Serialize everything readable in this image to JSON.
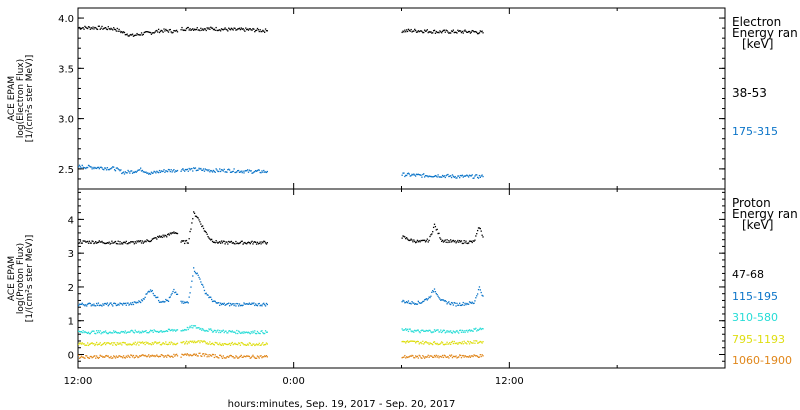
{
  "xlabel": "hours:minutes, Sep. 19, 2017 - Sep. 20, 2017",
  "x_ticks": [
    {
      "hours": 0,
      "label": "12:00"
    },
    {
      "hours": 12,
      "label": "0:00"
    },
    {
      "hours": 24,
      "label": "12:00"
    }
  ],
  "x_range_hours": [
    0,
    36
  ],
  "colors": {
    "black": "#000000",
    "blue": "#0a74c8",
    "cyan": "#26dcd6",
    "yellow": "#dede10",
    "orange": "#e0861a"
  },
  "chart_data": [
    {
      "type": "scatter",
      "ylabel_lines": [
        "ACE EPAM",
        "log(Electron Flux)",
        "[1/(cm²s ster MeV)]"
      ],
      "ylim": [
        2.3,
        4.1
      ],
      "y_ticks": [
        {
          "value": 2.5,
          "label": "2.5"
        },
        {
          "value": 3.0,
          "label": "3.0"
        },
        {
          "value": 3.5,
          "label": "3.5"
        },
        {
          "value": 4.0,
          "label": "4.0"
        }
      ],
      "legend_title": [
        "Electron",
        "Energy ran",
        "[keV]"
      ],
      "series": [
        {
          "name": "38-53",
          "color": "#000000",
          "segments": [
            {
              "x": [
                0,
                1,
                2,
                2.5,
                3,
                3.5,
                4,
                4.5,
                5,
                5.5
              ],
              "y": [
                3.91,
                3.91,
                3.9,
                3.86,
                3.83,
                3.85,
                3.86,
                3.88,
                3.88,
                3.87
              ]
            },
            {
              "x": [
                5.7,
                6.5,
                7.5,
                8.5,
                9.5,
                10.5
              ],
              "y": [
                3.9,
                3.9,
                3.9,
                3.89,
                3.89,
                3.88
              ]
            },
            {
              "x": [
                18,
                19,
                20,
                21,
                22,
                22.5
              ],
              "y": [
                3.88,
                3.88,
                3.87,
                3.87,
                3.87,
                3.86
              ]
            }
          ]
        },
        {
          "name": "175-315",
          "color": "#0a74c8",
          "segments": [
            {
              "x": [
                0,
                1,
                2,
                2.5,
                3,
                3.5,
                4,
                4.5,
                5,
                5.5
              ],
              "y": [
                2.53,
                2.52,
                2.51,
                2.47,
                2.48,
                2.5,
                2.46,
                2.48,
                2.49,
                2.49
              ]
            },
            {
              "x": [
                5.7,
                6.5,
                7.5,
                8.5,
                9.5,
                10.5
              ],
              "y": [
                2.5,
                2.5,
                2.49,
                2.49,
                2.48,
                2.48
              ]
            },
            {
              "x": [
                18,
                19,
                20,
                21,
                22,
                22.5
              ],
              "y": [
                2.45,
                2.44,
                2.44,
                2.43,
                2.43,
                2.43
              ]
            }
          ]
        }
      ]
    },
    {
      "type": "scatter",
      "ylabel_lines": [
        "ACE EPAM",
        "log(Proton Flux)",
        "[1/(cm²s ster MeV)]"
      ],
      "ylim": [
        -0.4,
        4.9
      ],
      "y_ticks": [
        {
          "value": 0,
          "label": "0"
        },
        {
          "value": 1,
          "label": "1"
        },
        {
          "value": 2,
          "label": "2"
        },
        {
          "value": 3,
          "label": "3"
        },
        {
          "value": 4,
          "label": "4"
        }
      ],
      "legend_title": [
        "Proton",
        "Energy ran",
        "[keV]"
      ],
      "series": [
        {
          "name": "47-68",
          "color": "#000000",
          "segments": [
            {
              "x": [
                0,
                1,
                2,
                3,
                3.5,
                4,
                4.5,
                5,
                5.3,
                5.5
              ],
              "y": [
                3.35,
                3.35,
                3.33,
                3.33,
                3.35,
                3.4,
                3.5,
                3.55,
                3.65,
                3.6
              ]
            },
            {
              "x": [
                5.7,
                6.1,
                6.4,
                6.6,
                6.8,
                7.0,
                7.3,
                7.6,
                8,
                9,
                10,
                10.5
              ],
              "y": [
                3.35,
                3.35,
                4.2,
                4.1,
                3.9,
                3.7,
                3.45,
                3.35,
                3.33,
                3.33,
                3.33,
                3.33
              ]
            },
            {
              "x": [
                18,
                18.5,
                19,
                19.5,
                19.8,
                20.2,
                21,
                22,
                22.3,
                22.5
              ],
              "y": [
                3.5,
                3.4,
                3.35,
                3.4,
                3.85,
                3.4,
                3.35,
                3.35,
                3.8,
                3.5
              ]
            }
          ]
        },
        {
          "name": "115-195",
          "color": "#0a74c8",
          "segments": [
            {
              "x": [
                0,
                1,
                2,
                3,
                3.5,
                4,
                4.5,
                5,
                5.3,
                5.5
              ],
              "y": [
                1.5,
                1.5,
                1.5,
                1.52,
                1.6,
                1.95,
                1.6,
                1.62,
                1.9,
                1.8
              ]
            },
            {
              "x": [
                5.7,
                6.1,
                6.4,
                6.6,
                6.8,
                7.0,
                7.3,
                7.6,
                8,
                9,
                10,
                10.5
              ],
              "y": [
                1.55,
                1.55,
                2.55,
                2.4,
                2.2,
                1.9,
                1.7,
                1.55,
                1.5,
                1.5,
                1.5,
                1.5
              ]
            },
            {
              "x": [
                18,
                18.5,
                19,
                19.5,
                19.8,
                20.2,
                21,
                22,
                22.3,
                22.5
              ],
              "y": [
                1.6,
                1.55,
                1.55,
                1.7,
                1.95,
                1.6,
                1.5,
                1.55,
                2.0,
                1.75
              ]
            }
          ]
        },
        {
          "name": "310-580",
          "color": "#26dcd6",
          "segments": [
            {
              "x": [
                0,
                2,
                4,
                5,
                5.5
              ],
              "y": [
                0.68,
                0.68,
                0.7,
                0.72,
                0.75
              ]
            },
            {
              "x": [
                5.7,
                6.4,
                7.0,
                8,
                9,
                10.5
              ],
              "y": [
                0.72,
                0.85,
                0.75,
                0.7,
                0.68,
                0.68
              ]
            },
            {
              "x": [
                18,
                19,
                20,
                21,
                22,
                22.5
              ],
              "y": [
                0.75,
                0.7,
                0.72,
                0.68,
                0.75,
                0.78
              ]
            }
          ]
        },
        {
          "name": "795-1193",
          "color": "#dede10",
          "segments": [
            {
              "x": [
                0,
                2,
                4,
                5.5
              ],
              "y": [
                0.33,
                0.33,
                0.35,
                0.35
              ]
            },
            {
              "x": [
                5.7,
                6.4,
                8,
                10.5
              ],
              "y": [
                0.35,
                0.4,
                0.33,
                0.33
              ]
            },
            {
              "x": [
                18,
                20,
                22,
                22.5
              ],
              "y": [
                0.4,
                0.35,
                0.38,
                0.4
              ]
            }
          ]
        },
        {
          "name": "1060-1900",
          "color": "#e0861a",
          "segments": [
            {
              "x": [
                0,
                2,
                4,
                5.5
              ],
              "y": [
                -0.05,
                -0.05,
                -0.03,
                -0.02
              ]
            },
            {
              "x": [
                5.7,
                6.4,
                8,
                10.5
              ],
              "y": [
                -0.02,
                0.03,
                -0.05,
                -0.05
              ]
            },
            {
              "x": [
                18,
                20,
                22,
                22.5
              ],
              "y": [
                -0.05,
                -0.05,
                -0.03,
                -0.02
              ]
            }
          ]
        }
      ]
    }
  ]
}
